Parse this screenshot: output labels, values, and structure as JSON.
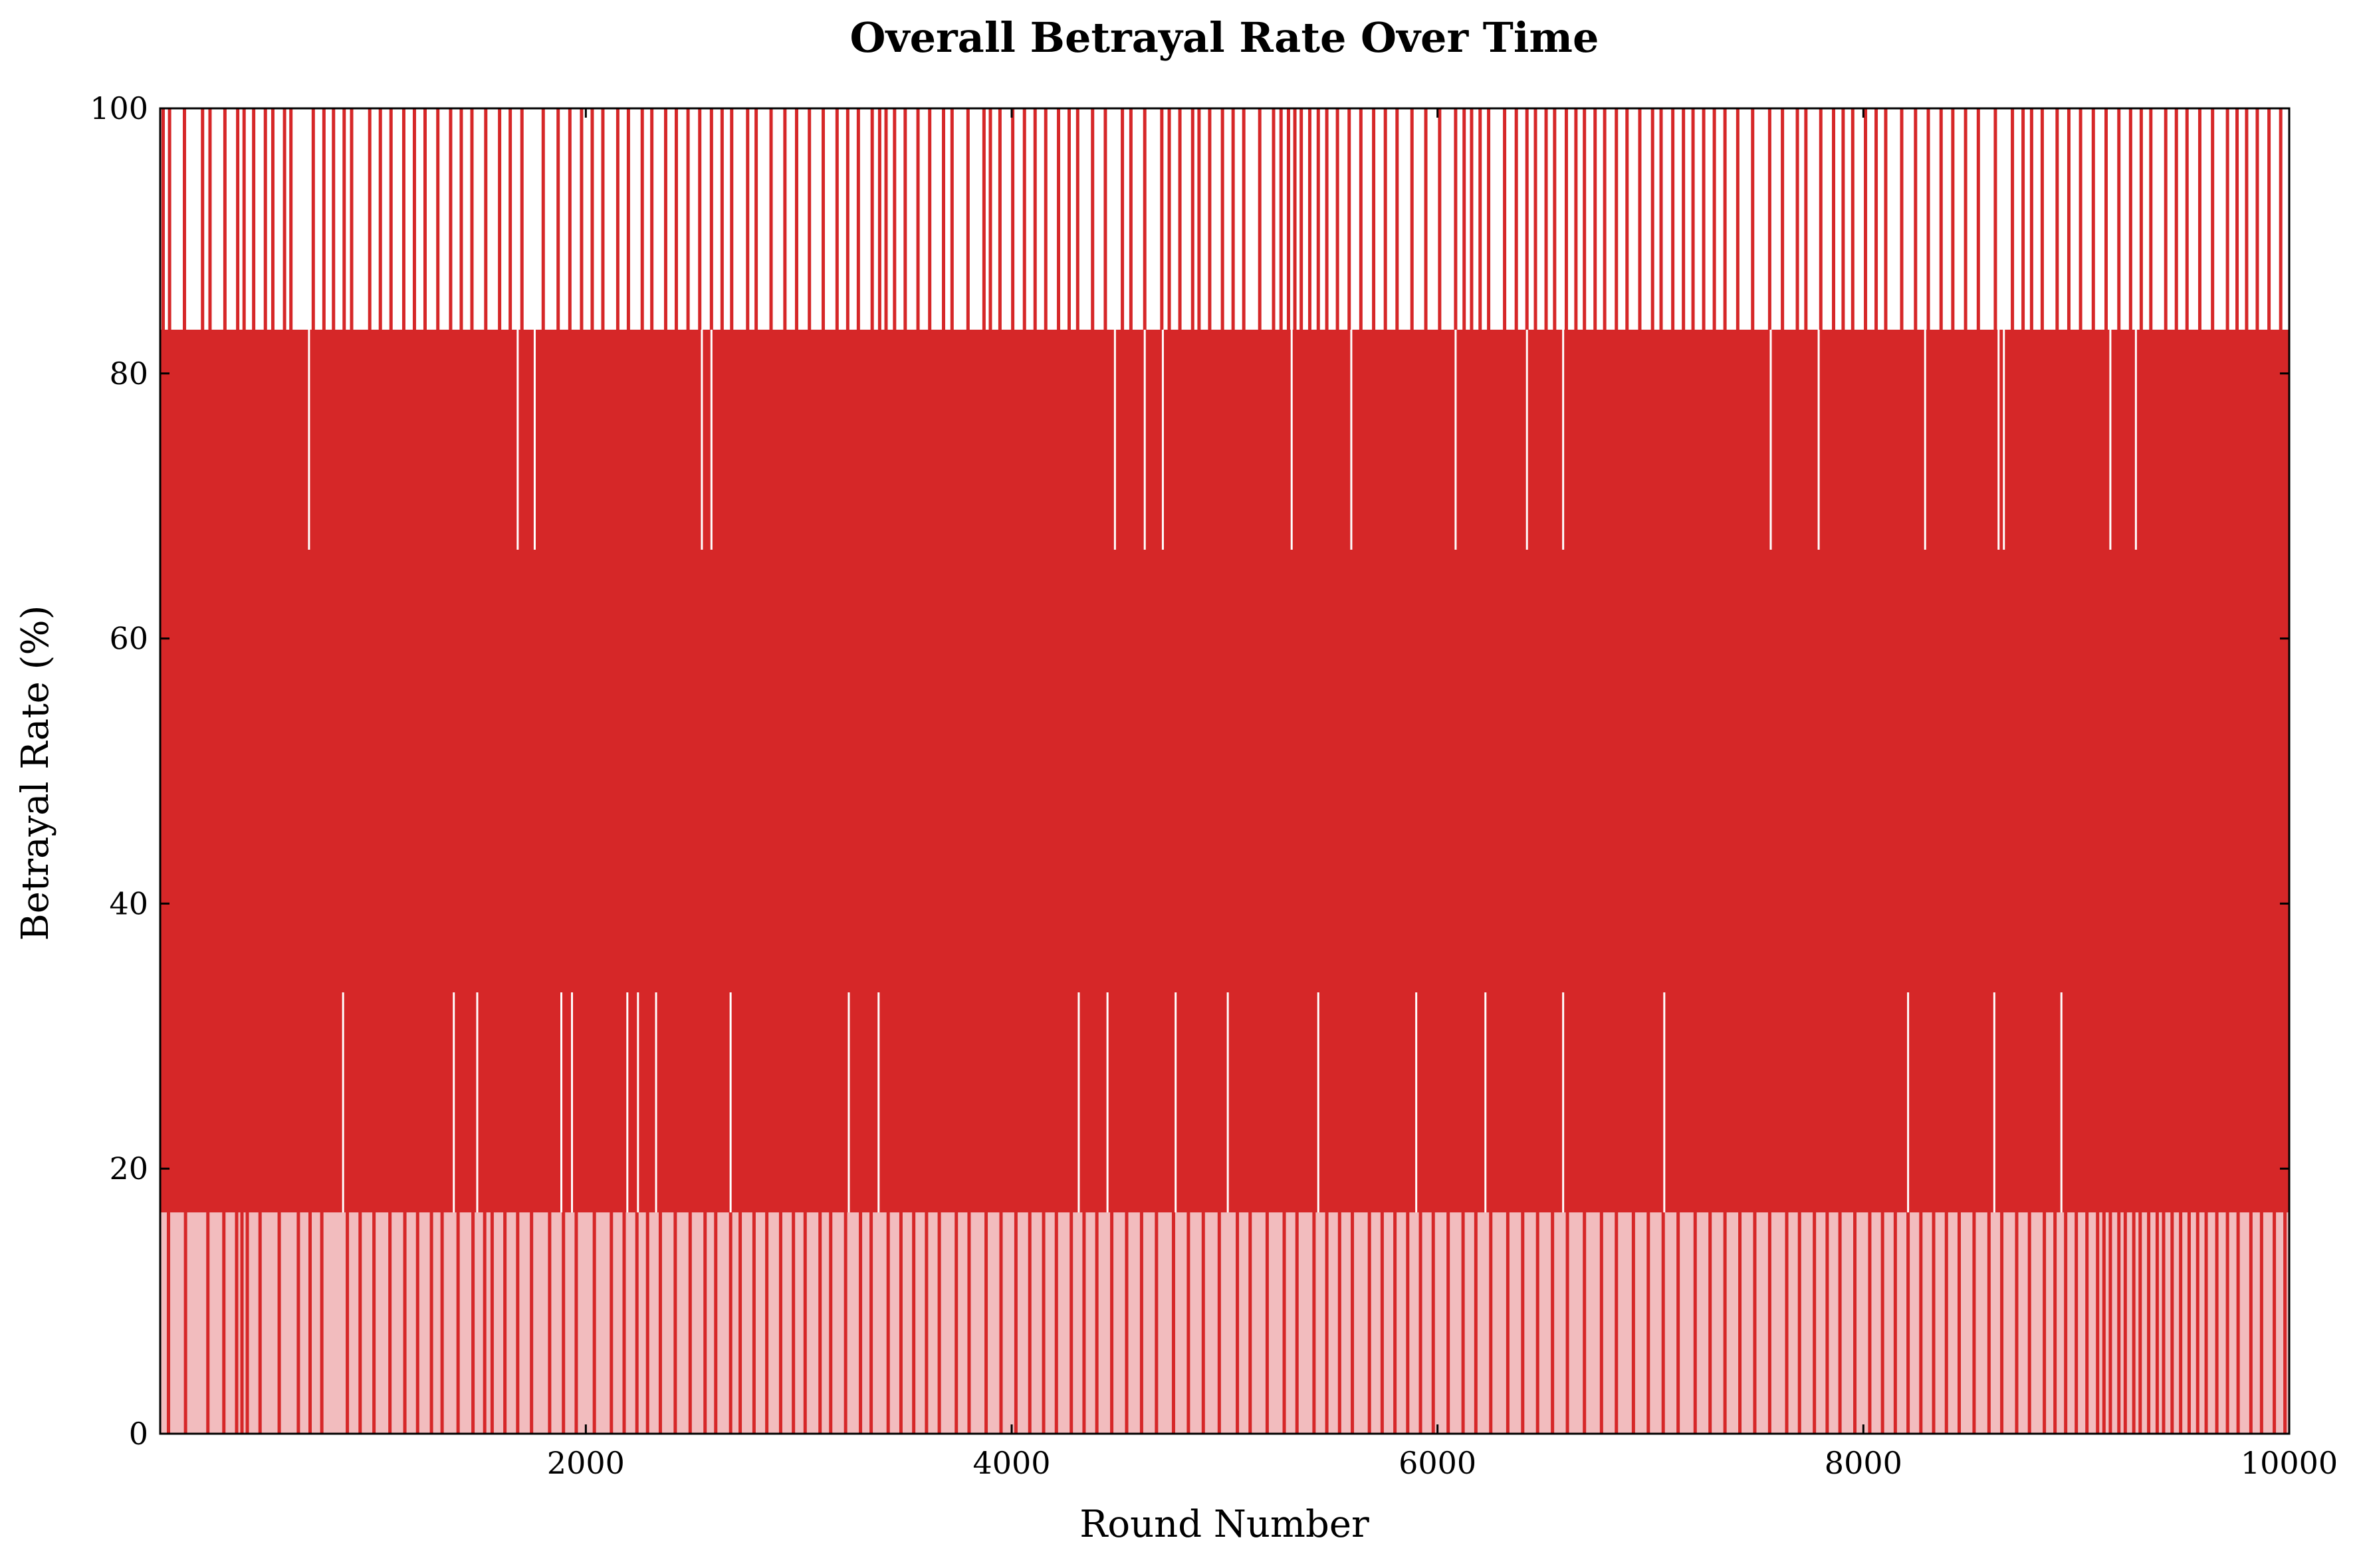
{
  "chart_data": {
    "type": "area",
    "title": "Overall Betrayal Rate Over Time",
    "xlabel": "Round Number",
    "ylabel": "Betrayal Rate (%)",
    "xlim": [
      1,
      10000
    ],
    "ylim": [
      0,
      100
    ],
    "xticks": [
      {
        "value": 2000,
        "label": "2000"
      },
      {
        "value": 4000,
        "label": "4000"
      },
      {
        "value": 6000,
        "label": "6000"
      },
      {
        "value": 8000,
        "label": "8000"
      },
      {
        "value": 10000,
        "label": "10000"
      }
    ],
    "yticks": [
      {
        "value": 0,
        "label": "0"
      },
      {
        "value": 20,
        "label": "20"
      },
      {
        "value": 40,
        "label": "40"
      },
      {
        "value": 60,
        "label": "60"
      },
      {
        "value": 80,
        "label": "80"
      },
      {
        "value": 100,
        "label": "100"
      }
    ],
    "grid": false,
    "legend": "none",
    "series": [
      {
        "line_color": "#d62728",
        "fill_color": "#f2bcbe",
        "typical_range": [
          16.7,
          83.3
        ],
        "discrete_levels": [
          0,
          16.7,
          33.3,
          50,
          66.7,
          83.3,
          100
        ],
        "max_spikes_x": [
          15,
          45,
          115,
          200,
          235,
          305,
          365,
          395,
          440,
          495,
          530,
          585,
          615,
          720,
          770,
          815,
          865,
          900,
          985,
          1035,
          1085,
          1145,
          1195,
          1245,
          1305,
          1365,
          1415,
          1465,
          1530,
          1595,
          1645,
          1700,
          1800,
          1870,
          1925,
          1980,
          2030,
          2080,
          2150,
          2200,
          2265,
          2310,
          2375,
          2425,
          2480,
          2535,
          2590,
          2640,
          2685,
          2760,
          2800,
          2870,
          2935,
          2990,
          3050,
          3115,
          3180,
          3230,
          3280,
          3345,
          3380,
          3410,
          3450,
          3500,
          3560,
          3615,
          3680,
          3720,
          3795,
          3870,
          3900,
          3945,
          4005,
          4060,
          4110,
          4160,
          4220,
          4270,
          4310,
          4380,
          4440,
          4520,
          4560,
          4625,
          4705,
          4740,
          4790,
          4850,
          4880,
          4930,
          4990,
          5040,
          5090,
          5165,
          5230,
          5265,
          5300,
          5330,
          5360,
          5400,
          5440,
          5480,
          5530,
          5585,
          5640,
          5700,
          5755,
          5810,
          5880,
          5945,
          6010,
          6085,
          6125,
          6160,
          6200,
          6240,
          6315,
          6370,
          6420,
          6460,
          6510,
          6550,
          6605,
          6650,
          6690,
          6740,
          6785,
          6840,
          6890,
          6950,
          7010,
          7050,
          7105,
          7155,
          7200,
          7250,
          7300,
          7350,
          7410,
          7480,
          7560,
          7620,
          7690,
          7730,
          7800,
          7860,
          7905,
          7950,
          8010,
          8060,
          8105,
          8180,
          8245,
          8305,
          8365,
          8420,
          8480,
          8540,
          8620,
          8700,
          8750,
          8790,
          8840,
          8910,
          8965,
          9020,
          9080,
          9140,
          9200,
          9255,
          9305,
          9350,
          9420,
          9470,
          9520,
          9580,
          9640,
          9710,
          9755,
          9800,
          9850,
          9905,
          9960
        ],
        "min_gaps_x": [
          40,
          120,
          225,
          300,
          360,
          385,
          410,
          470,
          560,
          650,
          705,
          760,
          880,
          940,
          1005,
          1080,
          1150,
          1210,
          1275,
          1325,
          1400,
          1470,
          1525,
          1560,
          1620,
          1680,
          1745,
          1830,
          1895,
          1955,
          2040,
          2120,
          2180,
          2240,
          2290,
          2350,
          2420,
          2490,
          2560,
          2610,
          2680,
          2725,
          2790,
          2850,
          2915,
          2975,
          3030,
          3100,
          3150,
          3220,
          3290,
          3340,
          3420,
          3480,
          3540,
          3600,
          3660,
          3740,
          3800,
          3880,
          3950,
          4020,
          4085,
          4150,
          4210,
          4280,
          4340,
          4400,
          4470,
          4540,
          4610,
          4680,
          4760,
          4830,
          4900,
          4975,
          5060,
          5120,
          5200,
          5280,
          5340,
          5420,
          5480,
          5540,
          5600,
          5680,
          5740,
          5800,
          5860,
          5920,
          5980,
          6050,
          6120,
          6180,
          6250,
          6330,
          6400,
          6470,
          6540,
          6610,
          6690,
          6770,
          6840,
          6920,
          6990,
          7060,
          7130,
          7210,
          7280,
          7350,
          7420,
          7490,
          7560,
          7640,
          7700,
          7770,
          7830,
          7890,
          7960,
          8030,
          8090,
          8150,
          8210,
          8270,
          8330,
          8390,
          8450,
          8520,
          8590,
          8650,
          8720,
          8780,
          8850,
          8900,
          8950,
          9000,
          9050,
          9100,
          9130,
          9160,
          9200,
          9230,
          9270,
          9300,
          9340,
          9380,
          9410,
          9450,
          9490,
          9530,
          9570,
          9610,
          9660,
          9710,
          9760,
          9820,
          9870,
          9930,
          9980
        ],
        "level_67_dips_x": [
          700,
          1680,
          1760,
          2545,
          2590,
          4485,
          4625,
          4710,
          5315,
          5595,
          6085,
          6420,
          6590,
          7565,
          7790,
          8290,
          8635,
          8660,
          9160,
          9280
        ],
        "level_33_spikes_x": [
          860,
          1380,
          1490,
          1885,
          1935,
          2195,
          2245,
          2330,
          2680,
          3235,
          3375,
          4315,
          4450,
          4770,
          5015,
          5440,
          5900,
          6225,
          6590,
          7065,
          8210,
          8615,
          8930
        ]
      }
    ]
  }
}
